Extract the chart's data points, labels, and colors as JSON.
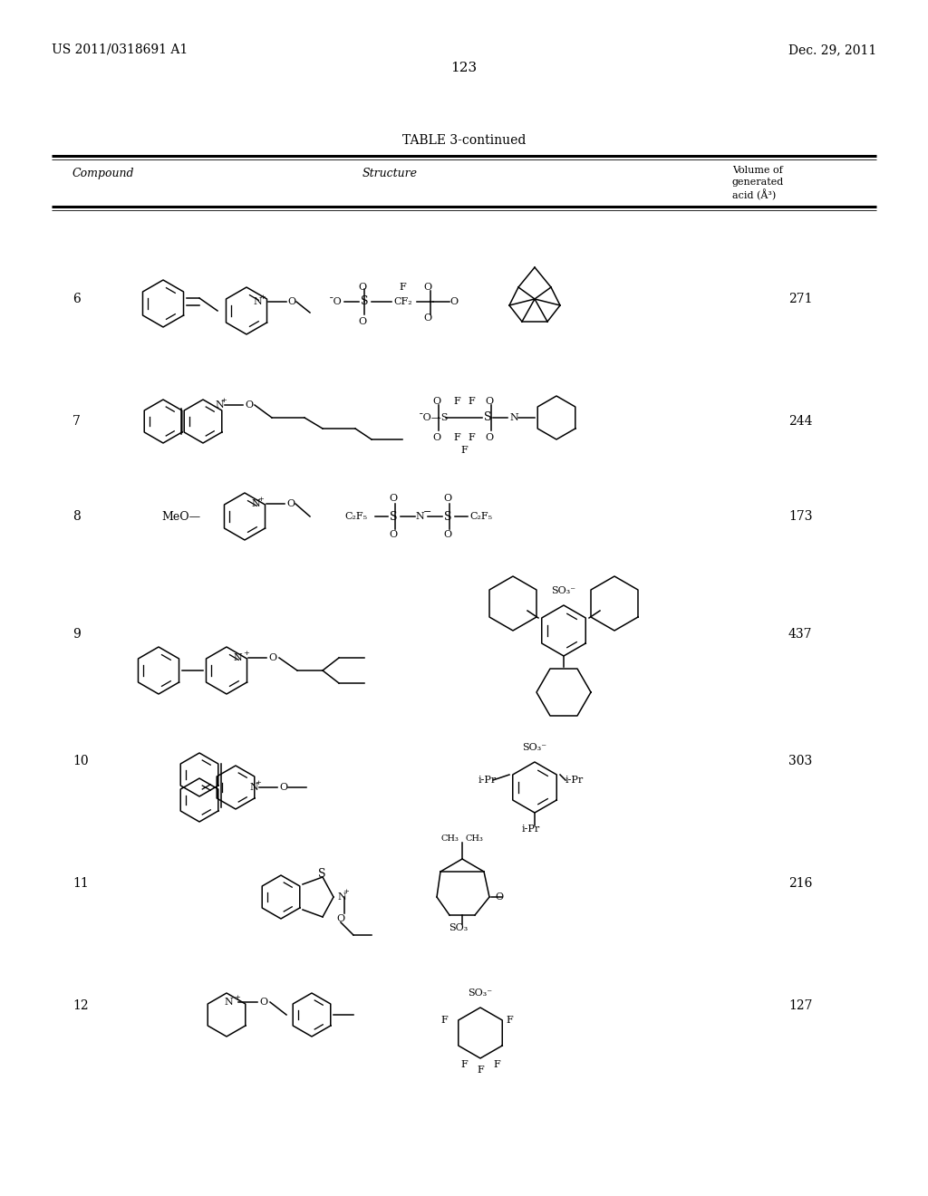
{
  "patent_number": "US 2011/0318691 A1",
  "patent_date": "Dec. 29, 2011",
  "page_number": "123",
  "table_title": "TABLE 3-continued",
  "col1": "Compound",
  "col2": "Structure",
  "col3_line1": "Volume of",
  "col3_line2": "generated",
  "col3_line3": "acid (Å³)",
  "compounds": [
    "6",
    "7",
    "8",
    "9",
    "10",
    "11",
    "12"
  ],
  "values": [
    "271",
    "244",
    "173",
    "437",
    "303",
    "216",
    "127"
  ],
  "bg": "#ffffff"
}
